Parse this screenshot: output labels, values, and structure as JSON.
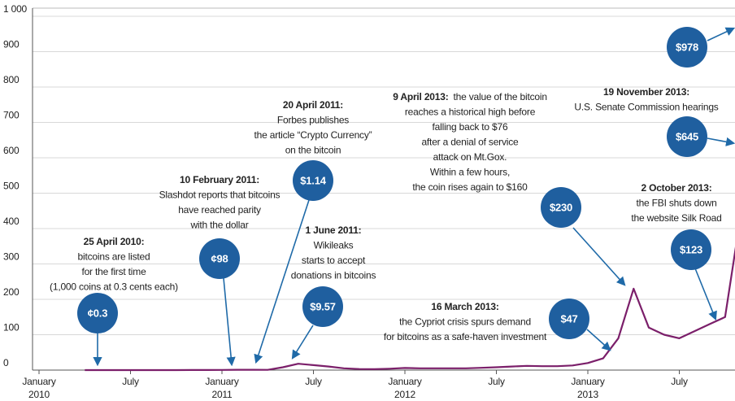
{
  "chart_data": {
    "type": "line",
    "x": [
      "2010-04",
      "2010-05",
      "2010-06",
      "2010-07",
      "2010-08",
      "2010-09",
      "2010-10",
      "2010-11",
      "2010-12",
      "2011-01",
      "2011-02",
      "2011-03",
      "2011-04",
      "2011-05",
      "2011-06",
      "2011-07",
      "2011-08",
      "2011-09",
      "2011-10",
      "2011-11",
      "2011-12",
      "2012-01",
      "2012-02",
      "2012-03",
      "2012-04",
      "2012-05",
      "2012-06",
      "2012-07",
      "2012-08",
      "2012-09",
      "2012-10",
      "2012-11",
      "2012-12",
      "2013-01",
      "2013-02",
      "2013-03",
      "2013-04",
      "2013-05",
      "2013-06",
      "2013-07",
      "2013-08",
      "2013-09",
      "2013-10",
      "2013-11"
    ],
    "series": [
      {
        "color": "#7b1f6a",
        "values": [
          0.003,
          0.05,
          0.07,
          0.07,
          0.07,
          0.06,
          0.1,
          0.28,
          0.3,
          0.4,
          0.9,
          0.9,
          0.8,
          8,
          18,
          14,
          10,
          5,
          3,
          2.5,
          4,
          6,
          5,
          5,
          5,
          5,
          6.5,
          8,
          10,
          12,
          11,
          11,
          13,
          20,
          33,
          90,
          230,
          120,
          100,
          90,
          110,
          130,
          150,
          430
        ]
      }
    ],
    "ylim": [
      0,
      1000
    ],
    "yticks": [
      0,
      100,
      200,
      300,
      400,
      500,
      600,
      700,
      800,
      900,
      {
        "value": 1000,
        "label": "1 000"
      }
    ],
    "xlim": [
      "2010-01",
      "2013-11"
    ],
    "xticks": [
      {
        "value": "2010-01",
        "label": "January 2010"
      },
      {
        "value": "2010-07",
        "label": "July"
      },
      {
        "value": "2011-01",
        "label": "January 2011"
      },
      {
        "value": "2011-07",
        "label": "July"
      },
      {
        "value": "2012-01",
        "label": "January 2012"
      },
      {
        "value": "2012-07",
        "label": "July"
      },
      {
        "value": "2013-01",
        "label": "January 2013"
      },
      {
        "value": "2013-07",
        "label": "July"
      }
    ],
    "grid": true,
    "annotations": [
      {
        "heading": "25 April 2010:",
        "text": [
          "bitcoins are listed",
          "for the first time",
          "(1,000 coins at 0.3 cents each)"
        ],
        "bubble": "¢0.3"
      },
      {
        "heading": "10 February 2011:",
        "text": [
          "Slashdot reports that bitcoins",
          "have reached parity",
          "with the dollar"
        ],
        "bubble": "¢98"
      },
      {
        "heading": "20 April 2011:",
        "text": [
          "Forbes publishes",
          "the article “Crypto Currency”",
          "on the bitcoin"
        ],
        "bubble": "$1.14"
      },
      {
        "heading": "1 June 2011:",
        "text": [
          "Wikileaks",
          "starts to accept",
          "donations in bitcoins"
        ],
        "bubble": "$9.57"
      },
      {
        "heading": "9 April 2013:",
        "text": [
          "the value of the bitcoin",
          "reaches a historical high before",
          "falling back to $76",
          "after a denial of service",
          "attack on Mt.Gox.",
          "Within a few hours,",
          "the coin rises again to $160"
        ],
        "bubble": "$230"
      },
      {
        "heading": "16 March 2013:",
        "text": [
          "the Cypriot crisis spurs demand",
          "for bitcoins as a safe-haven investment"
        ],
        "bubble": "$47"
      },
      {
        "heading": "19 November 2013:",
        "text": [
          "U.S. Senate Commission hearings"
        ],
        "bubble": "$645"
      },
      {
        "heading": "2 October 2013:",
        "text": [
          "the FBI shuts down",
          "the website Silk Road"
        ],
        "bubble": "$123"
      },
      {
        "bubble": "$978"
      }
    ]
  }
}
